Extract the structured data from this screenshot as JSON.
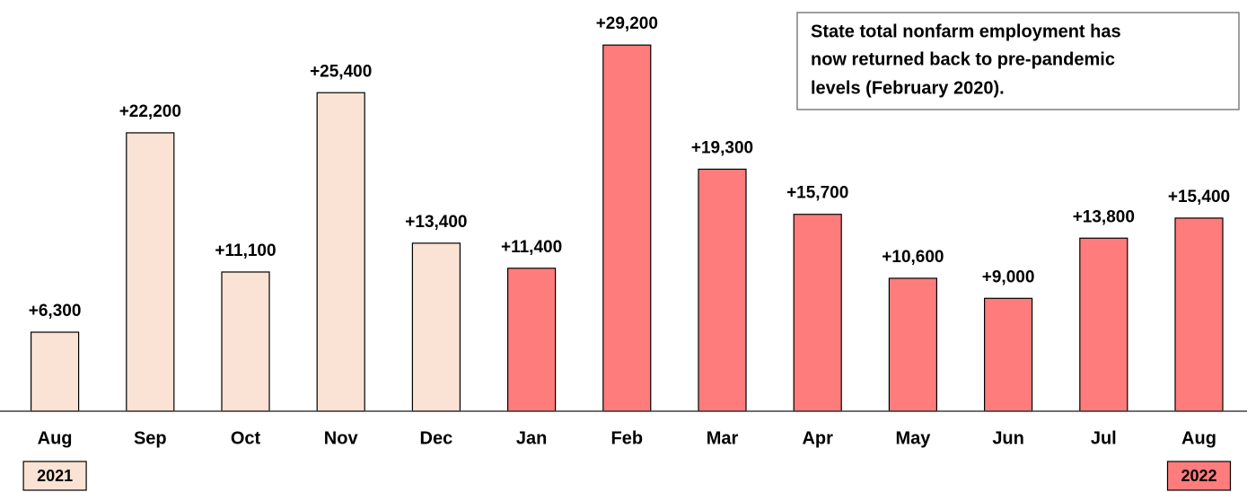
{
  "chart_data": {
    "type": "bar",
    "categories": [
      "Aug",
      "Sep",
      "Oct",
      "Nov",
      "Dec",
      "Jan",
      "Feb",
      "Mar",
      "Apr",
      "May",
      "Jun",
      "Jul",
      "Aug"
    ],
    "values": [
      6300,
      22200,
      11100,
      25400,
      13400,
      11400,
      29200,
      19300,
      15700,
      10600,
      9000,
      13800,
      15400
    ],
    "value_labels": [
      "+6,300",
      "+22,200",
      "+11,100",
      "+25,400",
      "+13,400",
      "+11,400",
      "+29,200",
      "+19,300",
      "+15,700",
      "+10,600",
      "+9,000",
      "+13,800",
      "+15,400"
    ],
    "colors": [
      "#fae3d4",
      "#fae3d4",
      "#fae3d4",
      "#fae3d4",
      "#fae3d4",
      "#ff7c7c",
      "#ff7c7c",
      "#ff7c7c",
      "#ff7c7c",
      "#ff7c7c",
      "#ff7c7c",
      "#ff7c7c",
      "#ff7c7c"
    ],
    "ylim": [
      0,
      30000
    ],
    "years": [
      "2021",
      "2022"
    ],
    "annotation": [
      "State total nonfarm employment has",
      "now returned back to pre-pandemic",
      "levels (February 2020)."
    ]
  }
}
